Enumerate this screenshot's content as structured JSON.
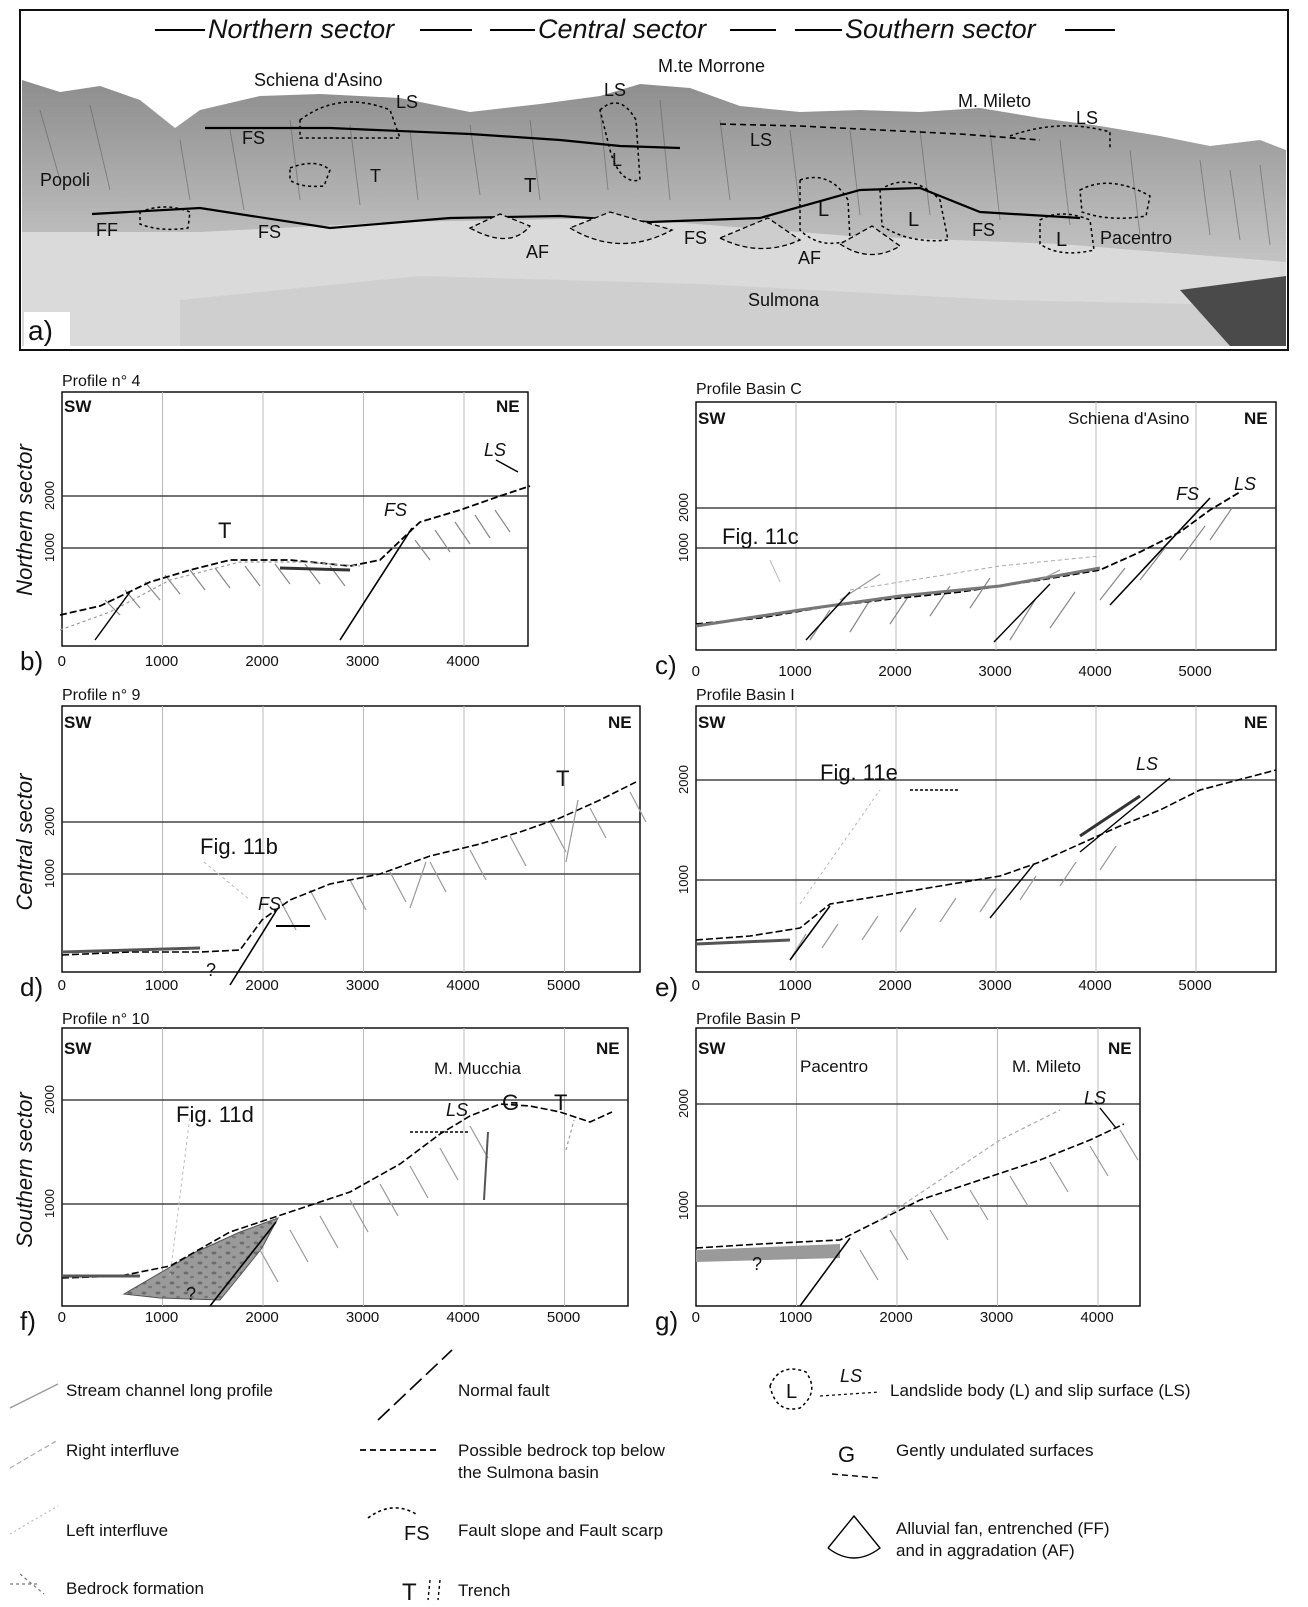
{
  "panel_a": {
    "sectors": {
      "northern": "Northern sector",
      "central": "Central sector",
      "southern": "Southern sector"
    },
    "places": {
      "schiena": "Schiena d'Asino",
      "morrone": "M.te Morrone",
      "mileto": "M. Mileto",
      "popoli": "Popoli",
      "pacentro": "Pacentro",
      "sulmona": "Sulmona"
    },
    "symbols": {
      "ls": "LS",
      "fs": "FS",
      "t": "T",
      "ff": "FF",
      "af": "AF",
      "l": "L"
    },
    "letter": "a)"
  },
  "profiles": {
    "b": {
      "letter": "b)",
      "title": "Profile n° 4",
      "sw": "SW",
      "ne": "NE",
      "sector": "Northern sector",
      "yticks": [
        "1000",
        "2000"
      ],
      "xticks": [
        "0",
        "1000",
        "2000",
        "3000",
        "4000"
      ],
      "labels": {
        "t": "T",
        "fs": "FS",
        "ls": "LS"
      }
    },
    "c": {
      "letter": "c)",
      "title": "Profile Basin C",
      "sw": "SW",
      "ne": "NE",
      "place": "Schiena d'Asino",
      "yticks": [
        "1000",
        "2000"
      ],
      "xticks": [
        "0",
        "1000",
        "2000",
        "3000",
        "4000",
        "5000"
      ],
      "labels": {
        "fig": "Fig. 11c",
        "fs": "FS",
        "ls": "LS"
      }
    },
    "d": {
      "letter": "d)",
      "title": "Profile n° 9",
      "sw": "SW",
      "ne": "NE",
      "sector": "Central sector",
      "yticks": [
        "1000",
        "2000"
      ],
      "xticks": [
        "0",
        "1000",
        "2000",
        "3000",
        "4000",
        "5000"
      ],
      "labels": {
        "fig": "Fig. 11b",
        "fs": "FS",
        "t": "T",
        "q": "?"
      }
    },
    "e": {
      "letter": "e)",
      "title": "Profile Basin I",
      "sw": "SW",
      "ne": "NE",
      "yticks": [
        "1000",
        "2000"
      ],
      "xticks": [
        "0",
        "1000",
        "2000",
        "3000",
        "4000",
        "5000"
      ],
      "labels": {
        "fig": "Fig. 11e",
        "ls": "LS"
      }
    },
    "f": {
      "letter": "f)",
      "title": "Profile n° 10",
      "sw": "SW",
      "ne": "NE",
      "sector": "Southern sector",
      "place": "M. Mucchia",
      "yticks": [
        "1000",
        "2000"
      ],
      "xticks": [
        "0",
        "1000",
        "2000",
        "3000",
        "4000",
        "5000"
      ],
      "labels": {
        "fig": "Fig. 11d",
        "ls": "LS",
        "g": "G",
        "t": "T",
        "q": "?"
      }
    },
    "g": {
      "letter": "g)",
      "title": "Profile Basin P",
      "sw": "SW",
      "ne": "NE",
      "place1": "Pacentro",
      "place2": "M. Mileto",
      "yticks": [
        "1000",
        "2000"
      ],
      "xticks": [
        "0",
        "1000",
        "2000",
        "3000",
        "4000"
      ],
      "labels": {
        "ls": "LS",
        "q": "?"
      }
    }
  },
  "legend": {
    "stream": "Stream channel long profile",
    "right": "Right interfluve",
    "left": "Left interfluve",
    "bedrock": "Bedrock formation",
    "normal": "Normal fault",
    "bedtop1": "Possible bedrock top below",
    "bedtop2": "the Sulmona basin",
    "fs_sym": "FS",
    "fs": "Fault slope and Fault scarp",
    "t_sym": "T",
    "trench": "Trench",
    "l_sym": "L",
    "ls_sym": "LS",
    "landslide": "Landslide body (L) and slip surface (LS)",
    "g_sym": "G",
    "gently": "Gently undulated surfaces",
    "fan1": "Alluvial fan, entrenched (FF)",
    "fan2": "and in aggradation (AF)"
  }
}
